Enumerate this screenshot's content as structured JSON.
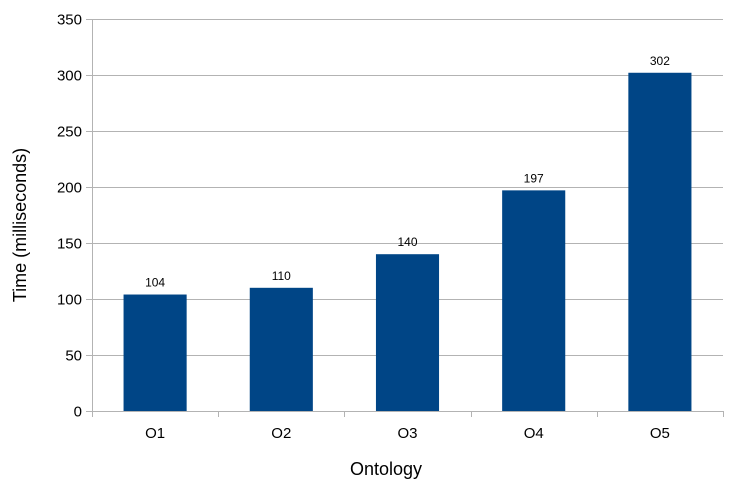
{
  "chart_data": {
    "type": "bar",
    "title": "",
    "xlabel": "Ontology",
    "ylabel": "Time (milliseconds)",
    "categories": [
      "O1",
      "O2",
      "O3",
      "O4",
      "O5"
    ],
    "values": [
      104,
      110,
      140,
      197,
      302
    ],
    "data_labels": [
      "104",
      "110",
      "140",
      "197",
      "302"
    ],
    "ylim": [
      0,
      350
    ],
    "ytick_step": 50,
    "yticks": [
      "0",
      "50",
      "100",
      "150",
      "200",
      "250",
      "300",
      "350"
    ],
    "grid": true,
    "legend": "none",
    "bar_color": "#004586"
  }
}
